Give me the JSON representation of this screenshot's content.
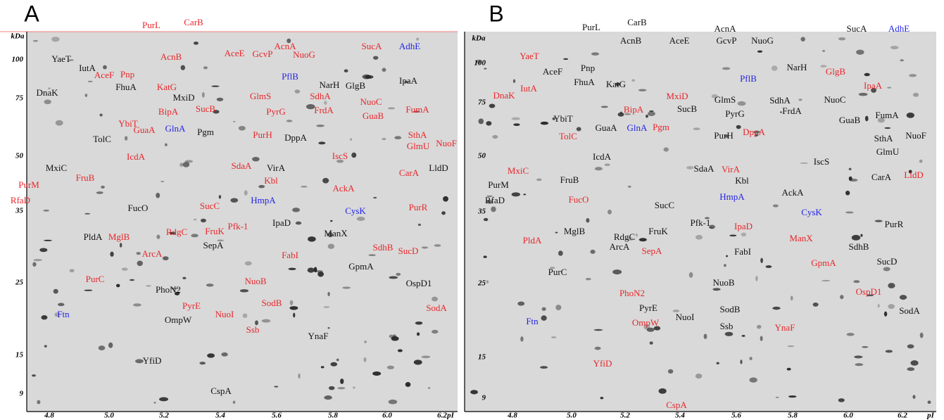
{
  "panels": [
    {
      "label": "A",
      "y_axis_label": "kDa",
      "x_axis_label": "pI",
      "kda_ticks": [
        "100",
        "75",
        "50",
        "35",
        "25",
        "15",
        "9"
      ],
      "pi_ticks": [
        "4.8",
        "5.0",
        "5.2",
        "5.4",
        "5.6",
        "5.8",
        "6.0",
        "6.2"
      ],
      "proteins": [
        {
          "name": "PurL",
          "color": "red"
        },
        {
          "name": "CarB",
          "color": "red"
        },
        {
          "name": "AcnB",
          "color": "red"
        },
        {
          "name": "AceE",
          "color": "red"
        },
        {
          "name": "GcvP",
          "color": "red"
        },
        {
          "name": "AcnA",
          "color": "red"
        },
        {
          "name": "NuoG",
          "color": "red"
        },
        {
          "name": "SucA",
          "color": "red"
        },
        {
          "name": "AdhE",
          "color": "blue"
        },
        {
          "name": "YaeT",
          "color": "black"
        },
        {
          "name": "IutA",
          "color": "black"
        },
        {
          "name": "PflB",
          "color": "blue"
        },
        {
          "name": "NarH",
          "color": "black"
        },
        {
          "name": "GlgB",
          "color": "black"
        },
        {
          "name": "IpaA",
          "color": "black"
        },
        {
          "name": "AceF",
          "color": "red"
        },
        {
          "name": "Pnp",
          "color": "red"
        },
        {
          "name": "FhuA",
          "color": "black"
        },
        {
          "name": "KatG",
          "color": "red"
        },
        {
          "name": "MxiD",
          "color": "black"
        },
        {
          "name": "GlmS",
          "color": "red"
        },
        {
          "name": "SdhA",
          "color": "red"
        },
        {
          "name": "DnaK",
          "color": "black"
        },
        {
          "name": "NuoC",
          "color": "red"
        },
        {
          "name": "BipA",
          "color": "red"
        },
        {
          "name": "PyrG",
          "color": "red"
        },
        {
          "name": "FrdA",
          "color": "red"
        },
        {
          "name": "SucB",
          "color": "red"
        },
        {
          "name": "GuaB",
          "color": "red"
        },
        {
          "name": "FumA",
          "color": "red"
        },
        {
          "name": "YbiT",
          "color": "red"
        },
        {
          "name": "GlnA",
          "color": "blue"
        },
        {
          "name": "GuaA",
          "color": "red"
        },
        {
          "name": "Pgm",
          "color": "black"
        },
        {
          "name": "PurH",
          "color": "red"
        },
        {
          "name": "DppA",
          "color": "black"
        },
        {
          "name": "SthA",
          "color": "red"
        },
        {
          "name": "TolC",
          "color": "black"
        },
        {
          "name": "GlmU",
          "color": "red"
        },
        {
          "name": "NuoF",
          "color": "red"
        },
        {
          "name": "IcdA",
          "color": "red"
        },
        {
          "name": "SdaA",
          "color": "red"
        },
        {
          "name": "VirA",
          "color": "black"
        },
        {
          "name": "IscS",
          "color": "red"
        },
        {
          "name": "CarA",
          "color": "red"
        },
        {
          "name": "LldD",
          "color": "black"
        },
        {
          "name": "MxiC",
          "color": "black"
        },
        {
          "name": "FruB",
          "color": "red"
        },
        {
          "name": "Kbl",
          "color": "red"
        },
        {
          "name": "AckA",
          "color": "red"
        },
        {
          "name": "PurM",
          "color": "red"
        },
        {
          "name": "RfaD",
          "color": "red"
        },
        {
          "name": "FucO",
          "color": "black"
        },
        {
          "name": "HmpA",
          "color": "blue"
        },
        {
          "name": "SucC",
          "color": "red"
        },
        {
          "name": "CysK",
          "color": "blue"
        },
        {
          "name": "PurR",
          "color": "red"
        },
        {
          "name": "PldA",
          "color": "black"
        },
        {
          "name": "MglB",
          "color": "red"
        },
        {
          "name": "RdgC",
          "color": "red"
        },
        {
          "name": "FruK",
          "color": "red"
        },
        {
          "name": "Pfk-1",
          "color": "red"
        },
        {
          "name": "IpaD",
          "color": "black"
        },
        {
          "name": "ManX",
          "color": "black"
        },
        {
          "name": "SdhB",
          "color": "red"
        },
        {
          "name": "SucD",
          "color": "red"
        },
        {
          "name": "SepA",
          "color": "black"
        },
        {
          "name": "ArcA",
          "color": "red"
        },
        {
          "name": "FabI",
          "color": "red"
        },
        {
          "name": "GpmA",
          "color": "black"
        },
        {
          "name": "PurC",
          "color": "red"
        },
        {
          "name": "NuoB",
          "color": "red"
        },
        {
          "name": "OspD1",
          "color": "black"
        },
        {
          "name": "PhoN2",
          "color": "black"
        },
        {
          "name": "PyrE",
          "color": "red"
        },
        {
          "name": "SodB",
          "color": "red"
        },
        {
          "name": "NuoI",
          "color": "red"
        },
        {
          "name": "SodA",
          "color": "red"
        },
        {
          "name": "Ftn",
          "color": "blue"
        },
        {
          "name": "OmpW",
          "color": "black"
        },
        {
          "name": "Ssb",
          "color": "red"
        },
        {
          "name": "YnaF",
          "color": "black"
        },
        {
          "name": "YfiD",
          "color": "black"
        },
        {
          "name": "CspA",
          "color": "black"
        }
      ]
    },
    {
      "label": "B",
      "y_axis_label": "kDa",
      "x_axis_label": "pI",
      "kda_ticks": [
        "100",
        "75",
        "50",
        "35",
        "25",
        "15",
        "9"
      ],
      "pi_ticks": [
        "4.8",
        "5.0",
        "5.2",
        "5.4",
        "5.6",
        "5.8",
        "6.0",
        "6.2"
      ],
      "proteins": [
        {
          "name": "PurL",
          "color": "black"
        },
        {
          "name": "CarB",
          "color": "black"
        },
        {
          "name": "AcnA",
          "color": "black"
        },
        {
          "name": "SucA",
          "color": "black"
        },
        {
          "name": "AdhE",
          "color": "blue"
        },
        {
          "name": "AcnB",
          "color": "black"
        },
        {
          "name": "AceE",
          "color": "black"
        },
        {
          "name": "GcvP",
          "color": "black"
        },
        {
          "name": "NuoG",
          "color": "black"
        },
        {
          "name": "YaeT",
          "color": "red"
        },
        {
          "name": "NarH",
          "color": "black"
        },
        {
          "name": "GlgB",
          "color": "red"
        },
        {
          "name": "AceF",
          "color": "black"
        },
        {
          "name": "Pnp",
          "color": "black"
        },
        {
          "name": "PflB",
          "color": "blue"
        },
        {
          "name": "IpaA",
          "color": "red"
        },
        {
          "name": "IutA",
          "color": "red"
        },
        {
          "name": "FhuA",
          "color": "black"
        },
        {
          "name": "KatG",
          "color": "black"
        },
        {
          "name": "MxiD",
          "color": "red"
        },
        {
          "name": "DnaK",
          "color": "red"
        },
        {
          "name": "GlmS",
          "color": "black"
        },
        {
          "name": "SdhA",
          "color": "black"
        },
        {
          "name": "NuoC",
          "color": "black"
        },
        {
          "name": "BipA",
          "color": "red"
        },
        {
          "name": "SucB",
          "color": "black"
        },
        {
          "name": "FrdA",
          "color": "black"
        },
        {
          "name": "PyrG",
          "color": "black"
        },
        {
          "name": "FumA",
          "color": "black"
        },
        {
          "name": "YbiT",
          "color": "black"
        },
        {
          "name": "GuaB",
          "color": "black"
        },
        {
          "name": "GuaA",
          "color": "black"
        },
        {
          "name": "GlnA",
          "color": "blue"
        },
        {
          "name": "Pgm",
          "color": "red"
        },
        {
          "name": "PurH",
          "color": "black"
        },
        {
          "name": "DppA",
          "color": "red"
        },
        {
          "name": "SthA",
          "color": "black"
        },
        {
          "name": "TolC",
          "color": "red"
        },
        {
          "name": "NuoF",
          "color": "black"
        },
        {
          "name": "GlmU",
          "color": "black"
        },
        {
          "name": "IcdA",
          "color": "black"
        },
        {
          "name": "IscS",
          "color": "black"
        },
        {
          "name": "MxiC",
          "color": "red"
        },
        {
          "name": "VirA",
          "color": "red"
        },
        {
          "name": "SdaA",
          "color": "black"
        },
        {
          "name": "FruB",
          "color": "black"
        },
        {
          "name": "Kbl",
          "color": "black"
        },
        {
          "name": "CarA",
          "color": "black"
        },
        {
          "name": "LldD",
          "color": "red"
        },
        {
          "name": "PurM",
          "color": "black"
        },
        {
          "name": "AckA",
          "color": "black"
        },
        {
          "name": "FucO",
          "color": "red"
        },
        {
          "name": "HmpA",
          "color": "blue"
        },
        {
          "name": "RfaD",
          "color": "black"
        },
        {
          "name": "SucC",
          "color": "black"
        },
        {
          "name": "Pfk-1",
          "color": "black"
        },
        {
          "name": "CysK",
          "color": "blue"
        },
        {
          "name": "PurR",
          "color": "black"
        },
        {
          "name": "MglB",
          "color": "black"
        },
        {
          "name": "RdgC",
          "color": "black"
        },
        {
          "name": "FruK",
          "color": "black"
        },
        {
          "name": "IpaD",
          "color": "red"
        },
        {
          "name": "ManX",
          "color": "red"
        },
        {
          "name": "PldA",
          "color": "red"
        },
        {
          "name": "ArcA",
          "color": "black"
        },
        {
          "name": "SepA",
          "color": "red"
        },
        {
          "name": "FabI",
          "color": "black"
        },
        {
          "name": "SdhB",
          "color": "black"
        },
        {
          "name": "SucD",
          "color": "black"
        },
        {
          "name": "GpmA",
          "color": "red"
        },
        {
          "name": "PurC",
          "color": "black"
        },
        {
          "name": "PhoN2",
          "color": "red"
        },
        {
          "name": "NuoB",
          "color": "black"
        },
        {
          "name": "OspD1",
          "color": "red"
        },
        {
          "name": "PyrE",
          "color": "black"
        },
        {
          "name": "SodB",
          "color": "black"
        },
        {
          "name": "SodA",
          "color": "black"
        },
        {
          "name": "Ftn",
          "color": "blue"
        },
        {
          "name": "OmpW",
          "color": "red"
        },
        {
          "name": "NuoI",
          "color": "black"
        },
        {
          "name": "Ssb",
          "color": "black"
        },
        {
          "name": "YnaF",
          "color": "red"
        },
        {
          "name": "YfiD",
          "color": "red"
        },
        {
          "name": "CspA",
          "color": "red"
        }
      ]
    }
  ]
}
